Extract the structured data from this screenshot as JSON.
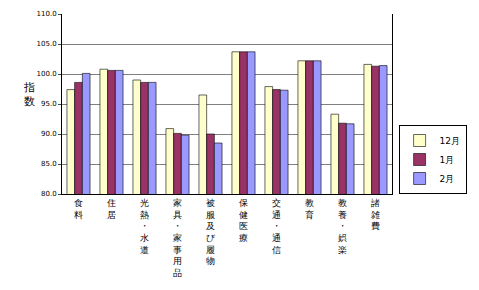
{
  "chart_data": {
    "type": "bar",
    "y_label": "指数",
    "categories": [
      "食料",
      "住居",
      "光熱・水道",
      "家具・家事用品",
      "被服及び履物",
      "保健医療",
      "交通・通信",
      "教育",
      "教養・娯楽",
      "諸雑費"
    ],
    "series": [
      {
        "name": "12月",
        "color": "#ffffcc",
        "values": [
          97.4,
          100.8,
          99.0,
          90.9,
          96.5,
          103.7,
          97.9,
          102.2,
          93.3,
          101.6
        ]
      },
      {
        "name": "1月",
        "color": "#993366",
        "values": [
          98.6,
          100.6,
          98.6,
          90.1,
          90.0,
          103.7,
          97.4,
          102.2,
          91.8,
          101.3
        ]
      },
      {
        "name": "2月",
        "color": "#9999ff",
        "values": [
          100.1,
          100.6,
          98.6,
          89.8,
          88.5,
          103.7,
          97.3,
          102.2,
          91.7,
          101.4
        ]
      }
    ],
    "ylim": [
      80,
      110
    ],
    "yticks": [
      {
        "value": 80,
        "label": "80.0"
      },
      {
        "value": 85,
        "label": "85.0"
      },
      {
        "value": 90,
        "label": "90.0"
      },
      {
        "value": 95,
        "label": "95.0"
      },
      {
        "value": 100,
        "label": "100.0"
      },
      {
        "value": 105,
        "label": "105.0"
      },
      {
        "value": 110,
        "label": "110.0"
      }
    ],
    "grid": true,
    "legend": "right"
  }
}
